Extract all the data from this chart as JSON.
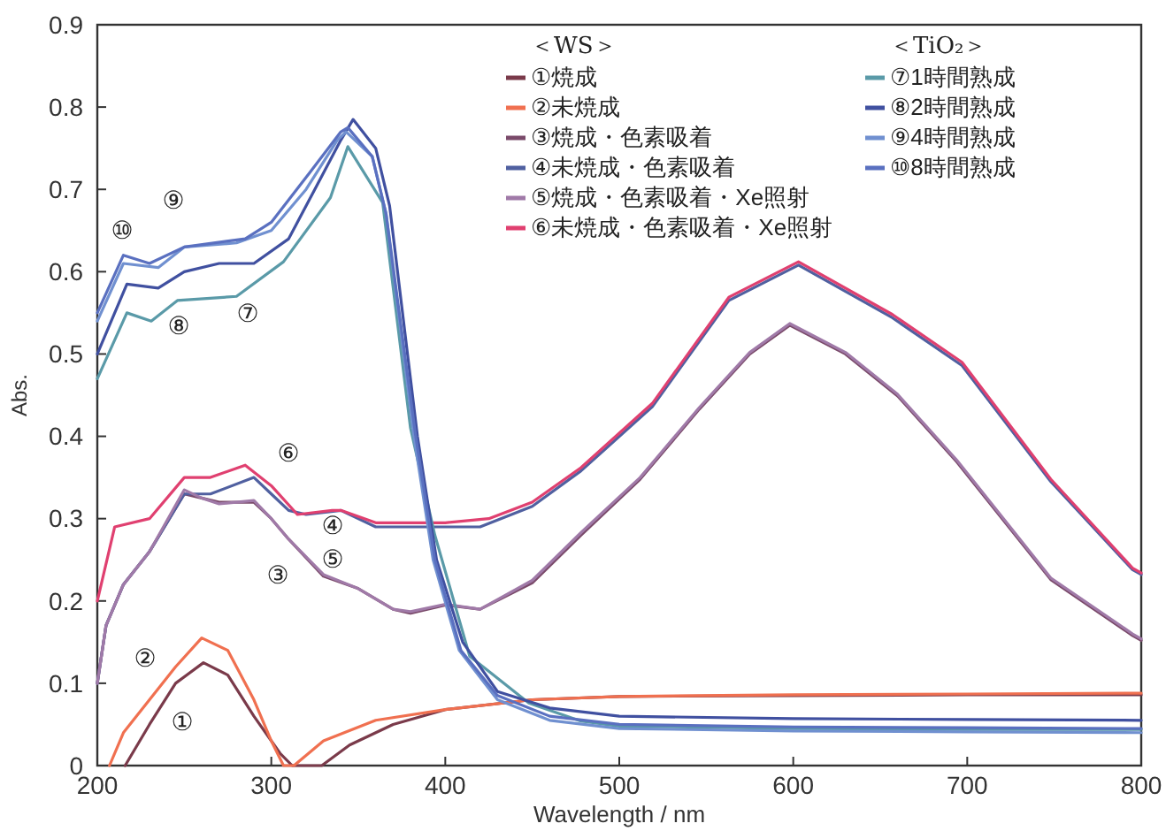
{
  "chart_data": {
    "type": "line",
    "xlabel": "Wavelength / nm",
    "ylabel": "Abs.",
    "xlim": [
      200,
      800
    ],
    "ylim": [
      0,
      0.9
    ],
    "xticks": [
      200,
      300,
      400,
      500,
      600,
      700,
      800
    ],
    "yticks": [
      0,
      0.1,
      0.2,
      0.3,
      0.4,
      0.5,
      0.6,
      0.7,
      0.8,
      0.9
    ],
    "grid": false,
    "legend": "top right",
    "marker": "none",
    "line_style": "solid",
    "annotations": [
      "＜WS＞",
      "＜TiO₂＞",
      "①",
      "②",
      "③",
      "④",
      "⑤",
      "⑥",
      "⑦",
      "⑧",
      "⑨",
      "⑩"
    ],
    "series": [
      {
        "name": "①焼成",
        "color": "#7a3a4a",
        "x": [
          216,
          230,
          245,
          261,
          275,
          290,
          305,
          312,
          329,
          345,
          370,
          400,
          450,
          500,
          600,
          700,
          800
        ],
        "values": [
          0,
          0.05,
          0.1,
          0.125,
          0.11,
          0.06,
          0.015,
          0,
          0,
          0.025,
          0.05,
          0.068,
          0.08,
          0.084,
          0.085,
          0.086,
          0.086
        ]
      },
      {
        "name": "②未焼成",
        "color": "#f07050",
        "x": [
          207,
          215,
          230,
          245,
          260,
          275,
          290,
          300,
          307,
          313,
          330,
          360,
          400,
          450,
          500,
          600,
          700,
          800
        ],
        "values": [
          0,
          0.04,
          0.08,
          0.12,
          0.155,
          0.14,
          0.08,
          0.03,
          0,
          0,
          0.03,
          0.055,
          0.068,
          0.08,
          0.084,
          0.086,
          0.087,
          0.088
        ]
      },
      {
        "name": "③焼成・色素吸着",
        "color": "#7a4a6a",
        "x": [
          200,
          205,
          215,
          230,
          250,
          260,
          270,
          290,
          300,
          310,
          330,
          350,
          370,
          380,
          400,
          420,
          450,
          478,
          512,
          546,
          575,
          598,
          630,
          660,
          694,
          748,
          795,
          800
        ],
        "values": [
          0.1,
          0.17,
          0.22,
          0.26,
          0.33,
          0.325,
          0.32,
          0.32,
          0.3,
          0.275,
          0.23,
          0.215,
          0.19,
          0.185,
          0.195,
          0.19,
          0.222,
          0.28,
          0.348,
          0.433,
          0.5,
          0.535,
          0.5,
          0.449,
          0.369,
          0.226,
          0.158,
          0.152
        ]
      },
      {
        "name": "④未焼成・色素吸着",
        "color": "#5060a0",
        "x": [
          200,
          205,
          215,
          230,
          250,
          265,
          290,
          300,
          310,
          320,
          340,
          360,
          420,
          450,
          478,
          519,
          563,
          603,
          657,
          697,
          748,
          795,
          800
        ],
        "values": [
          0.1,
          0.17,
          0.22,
          0.26,
          0.33,
          0.33,
          0.35,
          0.33,
          0.31,
          0.305,
          0.31,
          0.29,
          0.29,
          0.315,
          0.358,
          0.436,
          0.565,
          0.608,
          0.544,
          0.486,
          0.345,
          0.238,
          0.232
        ]
      },
      {
        "name": "⑤焼成・色素吸着・Xe照射",
        "color": "#a07aa8",
        "x": [
          200,
          205,
          215,
          230,
          250,
          260,
          270,
          290,
          300,
          310,
          330,
          350,
          370,
          380,
          400,
          420,
          450,
          478,
          512,
          546,
          575,
          598,
          630,
          660,
          694,
          748,
          795,
          800
        ],
        "values": [
          0.1,
          0.17,
          0.22,
          0.26,
          0.335,
          0.325,
          0.318,
          0.322,
          0.3,
          0.275,
          0.232,
          0.215,
          0.19,
          0.187,
          0.196,
          0.19,
          0.225,
          0.283,
          0.35,
          0.435,
          0.502,
          0.537,
          0.502,
          0.451,
          0.371,
          0.228,
          0.16,
          0.154
        ]
      },
      {
        "name": "⑥未焼成・色素吸着・Xe照射",
        "color": "#e04070",
        "x": [
          200,
          210,
          230,
          250,
          265,
          285,
          300,
          315,
          335,
          340,
          360,
          400,
          425,
          450,
          478,
          519,
          563,
          603,
          657,
          697,
          748,
          795,
          800
        ],
        "values": [
          0.2,
          0.29,
          0.3,
          0.35,
          0.35,
          0.365,
          0.34,
          0.305,
          0.31,
          0.31,
          0.295,
          0.295,
          0.3,
          0.32,
          0.362,
          0.44,
          0.569,
          0.612,
          0.548,
          0.49,
          0.348,
          0.24,
          0.234
        ]
      },
      {
        "name": "⑦1時間熟成",
        "color": "#5a9aa8",
        "x": [
          200,
          217,
          231,
          246,
          280,
          307,
          334,
          344,
          364,
          380,
          394,
          414,
          448,
          478,
          500,
          600,
          700,
          800
        ],
        "values": [
          0.47,
          0.55,
          0.54,
          0.565,
          0.57,
          0.612,
          0.69,
          0.752,
          0.684,
          0.41,
          0.28,
          0.133,
          0.076,
          0.054,
          0.048,
          0.045,
          0.044,
          0.044
        ]
      },
      {
        "name": "⑧2時間熟成",
        "color": "#4050a0",
        "x": [
          200,
          217,
          235,
          250,
          270,
          290,
          310,
          325,
          340,
          347,
          360,
          368,
          384,
          395,
          410,
          430,
          460,
          500,
          600,
          700,
          800
        ],
        "values": [
          0.5,
          0.585,
          0.58,
          0.6,
          0.61,
          0.61,
          0.64,
          0.7,
          0.76,
          0.785,
          0.75,
          0.68,
          0.4,
          0.25,
          0.15,
          0.09,
          0.07,
          0.06,
          0.057,
          0.056,
          0.055
        ]
      },
      {
        "name": "⑨4時間熟成",
        "color": "#7090d0",
        "x": [
          200,
          215,
          235,
          250,
          280,
          300,
          320,
          338,
          343,
          358,
          366,
          382,
          393,
          408,
          430,
          460,
          500,
          600,
          700,
          800
        ],
        "values": [
          0.54,
          0.61,
          0.605,
          0.63,
          0.635,
          0.65,
          0.7,
          0.76,
          0.77,
          0.74,
          0.67,
          0.4,
          0.25,
          0.14,
          0.08,
          0.055,
          0.045,
          0.042,
          0.041,
          0.04
        ]
      },
      {
        "name": "⑩8時間熟成",
        "color": "#5a70c0",
        "x": [
          200,
          215,
          230,
          250,
          285,
          300,
          322,
          340,
          344,
          358,
          366,
          383,
          394,
          409,
          430,
          460,
          500,
          600,
          700,
          800
        ],
        "values": [
          0.55,
          0.62,
          0.61,
          0.63,
          0.64,
          0.66,
          0.72,
          0.77,
          0.775,
          0.74,
          0.67,
          0.4,
          0.25,
          0.14,
          0.085,
          0.06,
          0.05,
          0.047,
          0.046,
          0.045
        ]
      }
    ]
  }
}
